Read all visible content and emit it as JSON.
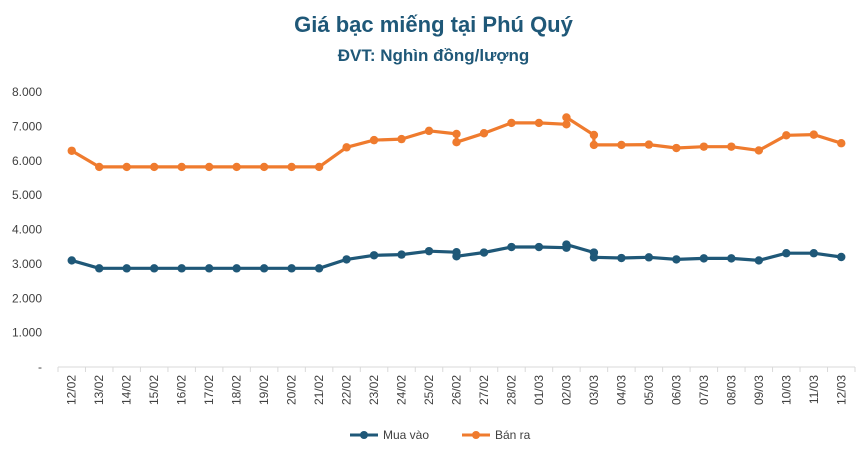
{
  "chart_data": {
    "type": "line",
    "title": "Giá bạc miếng tại Phú Quý",
    "subtitle": "ĐVT: Nghìn đồng/lượng",
    "ylim": [
      0,
      8000
    ],
    "yticks": [
      0,
      1000,
      2000,
      3000,
      4000,
      5000,
      6000,
      7000,
      8000
    ],
    "ytick_labels": [
      "-",
      "1.000",
      "2.000",
      "3.000",
      "4.000",
      "5.000",
      "6.000",
      "7.000",
      "8.000"
    ],
    "grid": false,
    "legend_position": "bottom",
    "categories": [
      "12/02",
      "13/02",
      "14/02",
      "15/02",
      "16/02",
      "17/02",
      "18/02",
      "19/02",
      "20/02",
      "21/02",
      "22/02",
      "23/02",
      "24/02",
      "25/02",
      "26/02",
      "27/02",
      "28/02",
      "01/03",
      "02/03",
      "03/03",
      "04/03",
      "05/03",
      "06/03",
      "07/03",
      "08/03",
      "09/03",
      "10/03",
      "11/03",
      "12/03"
    ],
    "series": [
      {
        "name": "Mua vào",
        "color": "#1f5878",
        "points": [
          [
            0,
            3100
          ],
          [
            1,
            2870
          ],
          [
            2,
            2870
          ],
          [
            3,
            2870
          ],
          [
            4,
            2870
          ],
          [
            5,
            2870
          ],
          [
            6,
            2870
          ],
          [
            7,
            2870
          ],
          [
            8,
            2870
          ],
          [
            9,
            2870
          ],
          [
            10,
            3130
          ],
          [
            11,
            3250
          ],
          [
            12,
            3270
          ],
          [
            13,
            3370
          ],
          [
            14,
            3340
          ],
          [
            14,
            3220
          ],
          [
            15,
            3330
          ],
          [
            16,
            3490
          ],
          [
            17,
            3490
          ],
          [
            18,
            3470
          ],
          [
            18,
            3560
          ],
          [
            19,
            3330
          ],
          [
            19,
            3190
          ],
          [
            20,
            3170
          ],
          [
            21,
            3190
          ],
          [
            22,
            3130
          ],
          [
            23,
            3160
          ],
          [
            24,
            3160
          ],
          [
            25,
            3100
          ],
          [
            26,
            3310
          ],
          [
            27,
            3310
          ],
          [
            28,
            3200
          ]
        ]
      },
      {
        "name": "Bán ra",
        "color": "#ef7b2e",
        "points": [
          [
            0,
            6290
          ],
          [
            1,
            5820
          ],
          [
            2,
            5820
          ],
          [
            3,
            5820
          ],
          [
            4,
            5820
          ],
          [
            5,
            5820
          ],
          [
            6,
            5820
          ],
          [
            7,
            5820
          ],
          [
            8,
            5820
          ],
          [
            9,
            5820
          ],
          [
            10,
            6390
          ],
          [
            11,
            6600
          ],
          [
            12,
            6630
          ],
          [
            13,
            6870
          ],
          [
            14,
            6780
          ],
          [
            14,
            6540
          ],
          [
            15,
            6800
          ],
          [
            16,
            7100
          ],
          [
            17,
            7100
          ],
          [
            18,
            7060
          ],
          [
            18,
            7260
          ],
          [
            19,
            6750
          ],
          [
            19,
            6460
          ],
          [
            20,
            6460
          ],
          [
            21,
            6470
          ],
          [
            22,
            6370
          ],
          [
            23,
            6410
          ],
          [
            24,
            6410
          ],
          [
            25,
            6300
          ],
          [
            26,
            6740
          ],
          [
            27,
            6760
          ],
          [
            28,
            6510
          ]
        ]
      }
    ]
  }
}
